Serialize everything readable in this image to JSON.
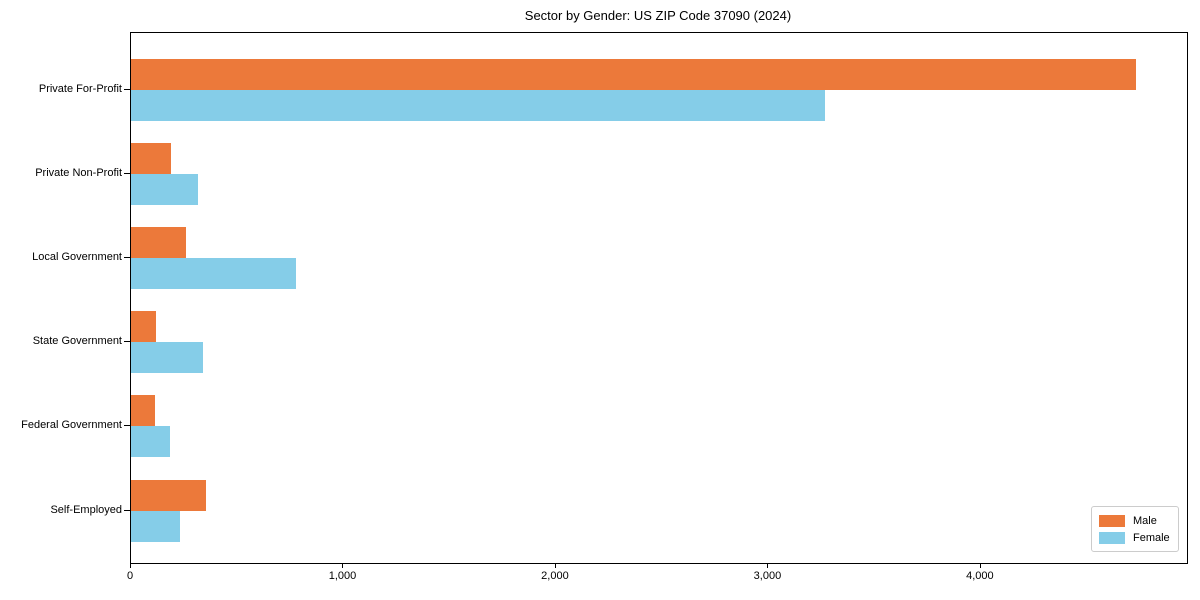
{
  "chart_data": {
    "type": "bar",
    "orientation": "horizontal",
    "title": "Sector by Gender: US ZIP Code 37090 (2024)",
    "xlabel": "",
    "ylabel": "",
    "categories": [
      "Private For-Profit",
      "Private Non-Profit",
      "Local Government",
      "State Government",
      "Federal Government",
      "Self-Employed"
    ],
    "series": [
      {
        "name": "Male",
        "color": "#ec793a",
        "values": [
          4730,
          190,
          260,
          120,
          115,
          355
        ]
      },
      {
        "name": "Female",
        "color": "#85cde8",
        "values": [
          3265,
          315,
          775,
          340,
          185,
          230
        ]
      }
    ],
    "xlim": [
      0,
      4970
    ],
    "x_ticks": [
      {
        "value": 0,
        "label": "0"
      },
      {
        "value": 1000,
        "label": "1,000"
      },
      {
        "value": 2000,
        "label": "2,000"
      },
      {
        "value": 3000,
        "label": "3,000"
      },
      {
        "value": 4000,
        "label": "4,000"
      }
    ],
    "grid": false,
    "legend_position": "lower right"
  }
}
